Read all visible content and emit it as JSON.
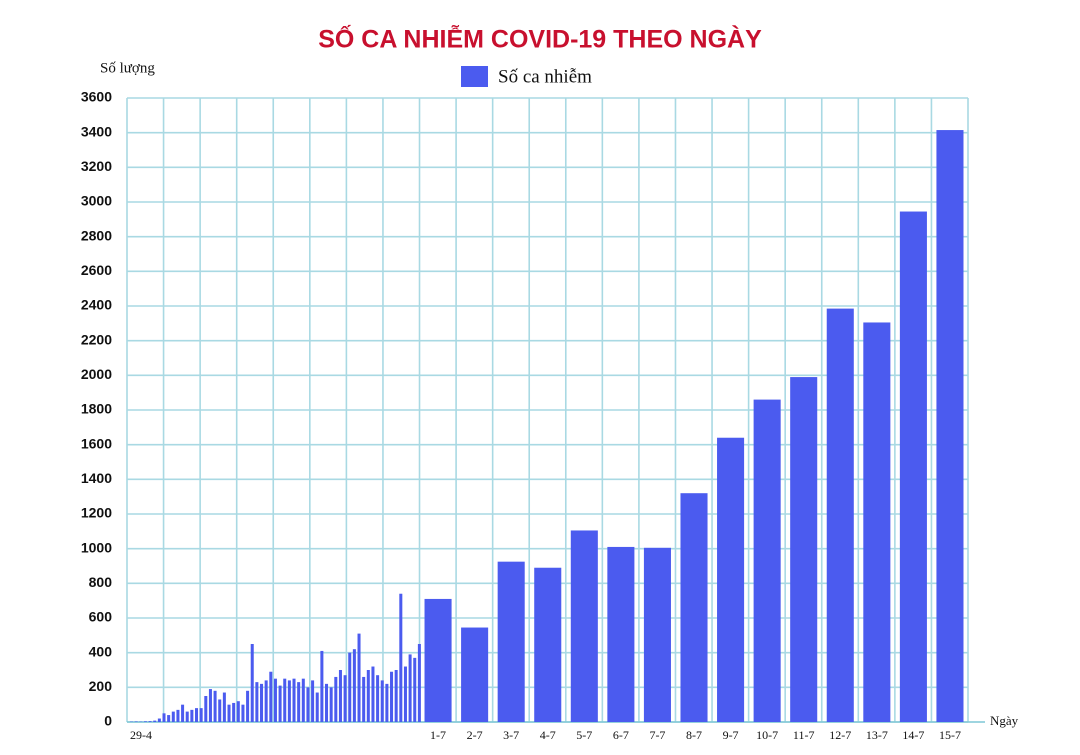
{
  "chart_data": {
    "type": "bar",
    "title": "SỐ CA NHIỄM COVID-19 THEO NGÀY",
    "y_label": "Số lượng",
    "x_label": "Ngày",
    "categories": [
      "29-4",
      null,
      null,
      null,
      null,
      null,
      null,
      null,
      null,
      null,
      null,
      null,
      null,
      null,
      null,
      null,
      null,
      null,
      null,
      null,
      null,
      null,
      null,
      null,
      null,
      null,
      null,
      null,
      null,
      null,
      null,
      null,
      null,
      null,
      null,
      null,
      null,
      null,
      null,
      null,
      null,
      null,
      null,
      null,
      null,
      null,
      null,
      null,
      null,
      null,
      null,
      null,
      null,
      null,
      null,
      null,
      null,
      null,
      null,
      null,
      null,
      null,
      null,
      "1-7",
      "2-7",
      "3-7",
      "4-7",
      "5-7",
      "6-7",
      "7-7",
      "8-7",
      "9-7",
      "10-7",
      "11-7",
      "12-7",
      "13-7",
      "14-7",
      "15-7"
    ],
    "series": [
      {
        "name": "Số ca nhiễm",
        "color": "#4b5bef",
        "values": [
          2,
          3,
          2,
          4,
          5,
          8,
          20,
          50,
          40,
          60,
          70,
          100,
          60,
          70,
          80,
          80,
          150,
          190,
          180,
          130,
          170,
          100,
          110,
          120,
          100,
          180,
          450,
          230,
          220,
          240,
          290,
          250,
          210,
          250,
          240,
          250,
          230,
          250,
          200,
          240,
          170,
          410,
          220,
          200,
          260,
          300,
          270,
          400,
          420,
          510,
          260,
          300,
          320,
          270,
          240,
          220,
          290,
          300,
          740,
          320,
          390,
          370,
          450,
          710,
          545,
          925,
          890,
          1105,
          1010,
          1005,
          1320,
          1640,
          1860,
          1990,
          2385,
          2305,
          2945,
          3415
        ]
      }
    ],
    "ylim": [
      0,
      3600
    ],
    "yticks": [
      0,
      200,
      400,
      600,
      800,
      1000,
      1200,
      1400,
      1600,
      1800,
      2000,
      2200,
      2400,
      2600,
      2800,
      3000,
      3200,
      3400,
      3600
    ],
    "grid": true,
    "legend": "top"
  }
}
